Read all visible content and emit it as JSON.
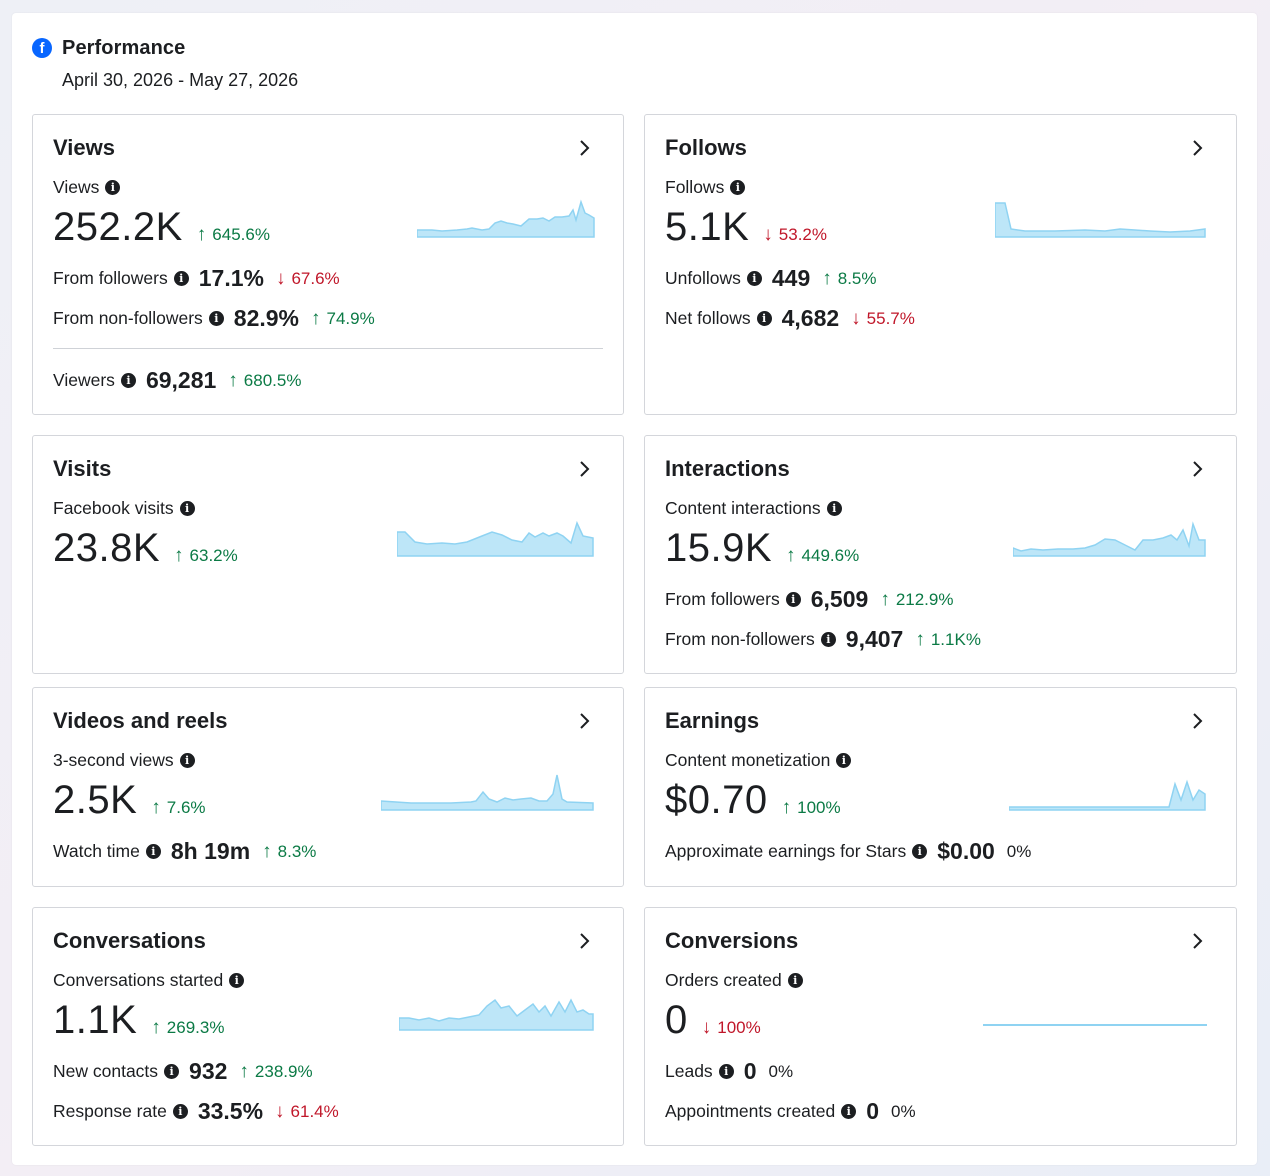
{
  "header": {
    "title": "Performance",
    "date_range": "April 30, 2026 - May 27, 2026",
    "icon": "facebook-icon",
    "brand_color": "#0866ff"
  },
  "colors": {
    "up": "#0b7a45",
    "down": "#c0172a",
    "sparkline_fill": "#bde6f8",
    "sparkline_stroke": "#8fd3f2"
  },
  "cards": {
    "views": {
      "title": "Views",
      "metric_label": "Views",
      "value": "252.2K",
      "delta": "645.6%",
      "rows": [
        {
          "label": "From followers",
          "value": "17.1%",
          "delta": "67.6%"
        },
        {
          "label": "From non-followers",
          "value": "82.9%",
          "delta": "74.9%"
        },
        {
          "label": "Viewers",
          "value": "69,281",
          "delta": "680.5%"
        }
      ]
    },
    "follows": {
      "title": "Follows",
      "metric_label": "Follows",
      "value": "5.1K",
      "delta": "53.2%",
      "rows": [
        {
          "label": "Unfollows",
          "value": "449",
          "delta": "8.5%"
        },
        {
          "label": "Net follows",
          "value": "4,682",
          "delta": "55.7%"
        }
      ]
    },
    "visits": {
      "title": "Visits",
      "metric_label": "Facebook visits",
      "value": "23.8K",
      "delta": "63.2%"
    },
    "interactions": {
      "title": "Interactions",
      "metric_label": "Content interactions",
      "value": "15.9K",
      "delta": "449.6%",
      "rows": [
        {
          "label": "From followers",
          "value": "6,509",
          "delta": "212.9%"
        },
        {
          "label": "From non-followers",
          "value": "9,407",
          "delta": "1.1K%"
        }
      ]
    },
    "videos": {
      "title": "Videos and reels",
      "metric_label": "3-second views",
      "value": "2.5K",
      "delta": "7.6%",
      "rows": [
        {
          "label": "Watch time",
          "value": "8h 19m",
          "delta": "8.3%"
        }
      ]
    },
    "earnings": {
      "title": "Earnings",
      "metric_label": "Content monetization",
      "value": "$0.70",
      "delta": "100%",
      "rows": [
        {
          "label": "Approximate earnings for Stars",
          "value": "$0.00",
          "delta": "0%"
        }
      ]
    },
    "conversations": {
      "title": "Conversations",
      "metric_label": "Conversations started",
      "value": "1.1K",
      "delta": "269.3%",
      "rows": [
        {
          "label": "New contacts",
          "value": "932",
          "delta": "238.9%"
        },
        {
          "label": "Response rate",
          "value": "33.5%",
          "delta": "61.4%"
        }
      ]
    },
    "conversions": {
      "title": "Conversions",
      "metric_label": "Orders created",
      "value": "0",
      "delta": "100%",
      "rows": [
        {
          "label": "Leads",
          "value": "0",
          "delta": "0%"
        },
        {
          "label": "Appointments created",
          "value": "0",
          "delta": "0%"
        }
      ]
    }
  }
}
